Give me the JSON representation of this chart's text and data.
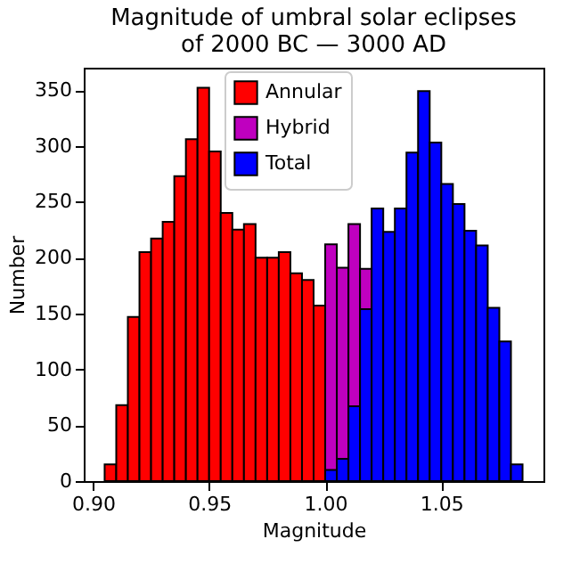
{
  "chart_data": {
    "type": "histogram",
    "title": "Magnitude of umbral solar eclipses\nof 2000 BC — 3000 AD",
    "xlabel": "Magnitude",
    "ylabel": "Number",
    "bins": [
      0.905,
      0.91,
      0.915,
      0.92,
      0.925,
      0.93,
      0.935,
      0.94,
      0.945,
      0.95,
      0.955,
      0.96,
      0.965,
      0.97,
      0.975,
      0.98,
      0.985,
      0.99,
      0.995,
      1.0,
      1.005,
      1.01,
      1.015,
      1.02,
      1.025,
      1.03,
      1.035,
      1.04,
      1.045,
      1.05,
      1.055,
      1.06,
      1.065,
      1.07,
      1.075,
      1.08,
      1.085
    ],
    "series": [
      {
        "name": "Annular",
        "color": "#ff0000",
        "values": [
          15,
          68,
          147,
          205,
          217,
          232,
          273,
          306,
          352,
          295,
          240,
          225,
          230,
          200,
          200,
          205,
          186,
          180,
          157,
          null,
          null,
          null,
          null,
          null,
          null,
          null,
          null,
          null,
          null,
          null,
          null,
          null,
          null,
          null,
          null,
          null
        ]
      },
      {
        "name": "Hybrid",
        "color": "#bf00bf",
        "values": [
          null,
          null,
          null,
          null,
          null,
          null,
          null,
          null,
          null,
          null,
          null,
          null,
          null,
          null,
          null,
          null,
          null,
          null,
          null,
          212,
          191,
          230,
          190,
          null,
          null,
          null,
          null,
          null,
          null,
          null,
          null,
          null,
          null,
          null,
          null,
          null
        ]
      },
      {
        "name": "Total",
        "color": "#0000ff",
        "values": [
          null,
          null,
          null,
          null,
          null,
          null,
          null,
          null,
          null,
          null,
          null,
          null,
          null,
          null,
          null,
          null,
          null,
          null,
          null,
          10,
          20,
          67,
          154,
          244,
          223,
          244,
          294,
          349,
          303,
          266,
          248,
          224,
          211,
          155,
          125,
          15
        ]
      }
    ],
    "xlim": [
      0.896,
      1.094
    ],
    "xticks": [
      {
        "value": 0.9,
        "label": "0.90"
      },
      {
        "value": 0.95,
        "label": "0.95"
      },
      {
        "value": 1.0,
        "label": "1.00"
      },
      {
        "value": 1.05,
        "label": "1.05"
      }
    ],
    "ylim": [
      0,
      370
    ],
    "yticks": [
      0,
      50,
      100,
      150,
      200,
      250,
      300,
      350
    ],
    "legend": "top",
    "grid": false
  }
}
